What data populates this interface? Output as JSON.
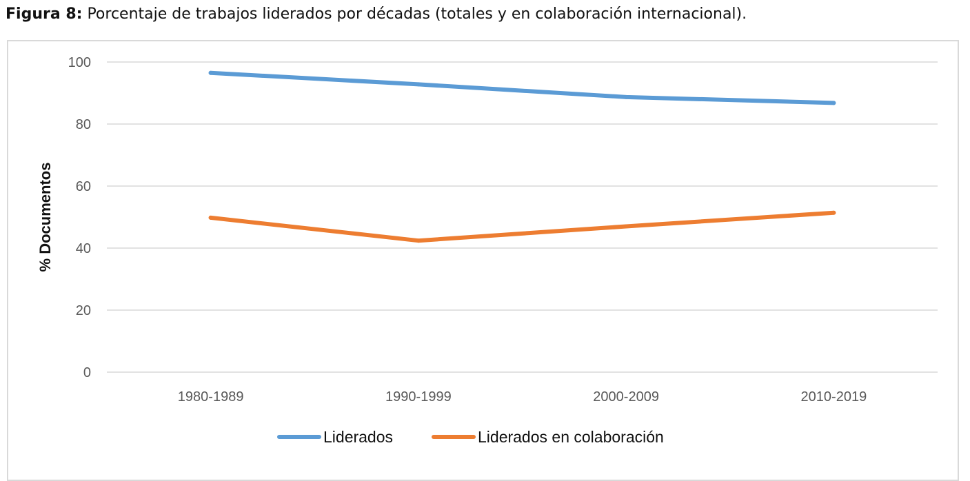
{
  "caption": {
    "label": "Figura 8:",
    "text": " Porcentaje de trabajos liderados por décadas (totales y en colaboración internacional)."
  },
  "chart_data": {
    "type": "line",
    "categories": [
      "1980-1989",
      "1990-1999",
      "2000-2009",
      "2010-2019"
    ],
    "series": [
      {
        "name": "Liderados",
        "values": [
          96.5,
          92.8,
          88.7,
          86.8
        ],
        "color": "#5b9bd5"
      },
      {
        "name": "Liderados en colaboración",
        "values": [
          49.8,
          42.4,
          47.0,
          51.4
        ],
        "color": "#ed7d31"
      }
    ],
    "title": "",
    "xlabel": "",
    "ylabel": "% Documentos",
    "ylim": [
      0,
      100
    ],
    "yticks": [
      0,
      20,
      40,
      60,
      80,
      100
    ],
    "grid": true,
    "legend": "bottom"
  }
}
